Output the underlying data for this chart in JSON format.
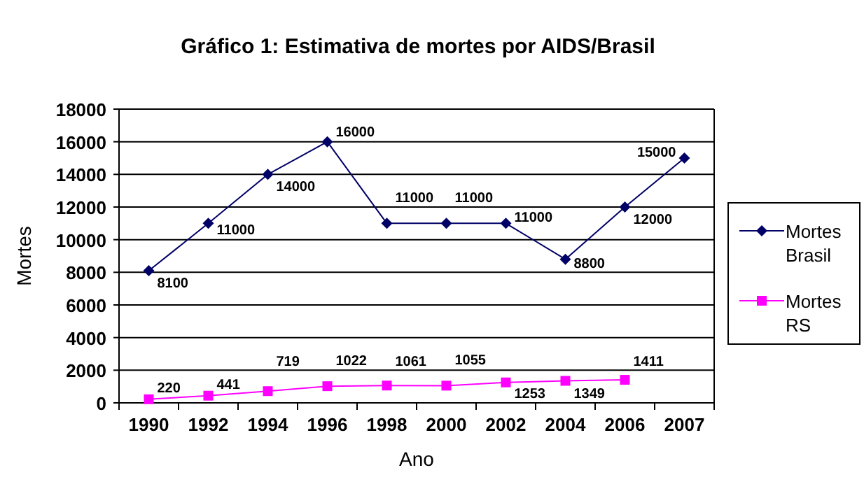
{
  "chart_data": {
    "type": "line",
    "title": "Gráfico 1: Estimativa de mortes por AIDS/Brasil",
    "xlabel": "Ano",
    "ylabel": "Mortes",
    "categories": [
      "1990",
      "1992",
      "1994",
      "1996",
      "1998",
      "2000",
      "2002",
      "2004",
      "2006",
      "2007"
    ],
    "series": [
      {
        "name": "Mortes Brasil",
        "color": "#000066",
        "marker": "diamond",
        "values": [
          8100,
          11000,
          14000,
          16000,
          11000,
          11000,
          11000,
          8800,
          12000,
          15000
        ]
      },
      {
        "name": "Mortes RS",
        "color": "#ff00ff",
        "marker": "square",
        "values": [
          220,
          441,
          719,
          1022,
          1061,
          1055,
          1253,
          1349,
          1411,
          null
        ]
      }
    ],
    "ylim": [
      0,
      18000
    ],
    "yticks": [
      0,
      2000,
      4000,
      6000,
      8000,
      10000,
      12000,
      14000,
      16000,
      18000
    ],
    "grid": "y",
    "legend": "right",
    "data_labels": true
  }
}
